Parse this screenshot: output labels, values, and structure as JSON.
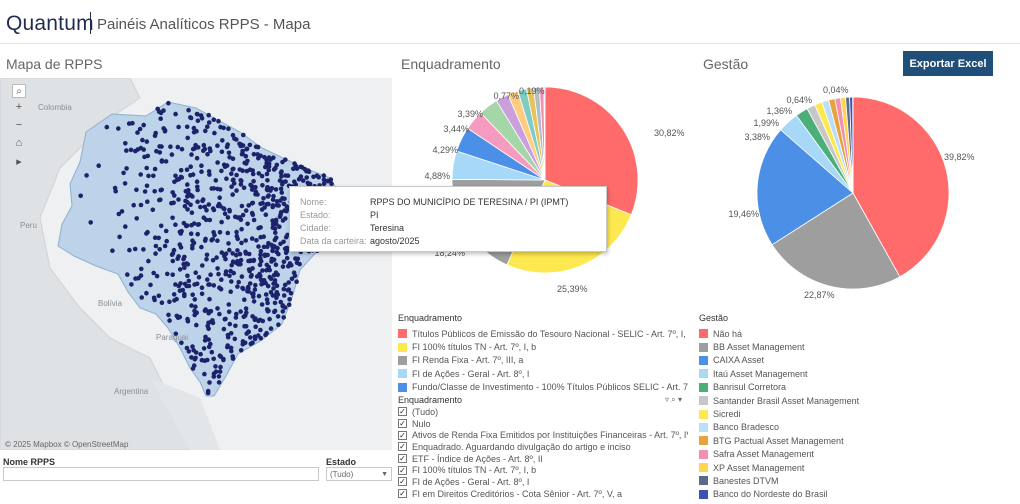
{
  "header": {
    "brand": "Quantum",
    "title": "Painéis Analíticos RPPS - Mapa"
  },
  "sections": {
    "map": "Mapa de RPPS",
    "enquadramento": "Enquadramento",
    "gestao": "Gestão"
  },
  "export_label": "Exportar Excel",
  "map": {
    "countries": [
      "Colombia",
      "Peru",
      "Bolívia",
      "Paraguai",
      "Argentina"
    ],
    "tools": {
      "search": "search-icon",
      "zoom_in": "+",
      "zoom_out": "−",
      "home": "home-icon",
      "play": "play-icon"
    },
    "credit": "© 2025 Mapbox  © OpenStreetMap",
    "marker_color": "#1c236b",
    "land_color": "#bcd3ea",
    "outside_color": "#d9dcdf"
  },
  "tooltip": {
    "rows": [
      {
        "label": "Nome:",
        "value": "RPPS DO MUNICÍPIO DE TERESINA / PI (IPMT)"
      },
      {
        "label": "Estado:",
        "value": "PI"
      },
      {
        "label": "Cidade:",
        "value": "Teresina"
      },
      {
        "label": "Data da carteira:",
        "value": "agosto/2025"
      }
    ]
  },
  "filters": {
    "nome_label": "Nome RPPS",
    "estado_label": "Estado",
    "estado_value": "(Tudo)"
  },
  "chart_data": [
    {
      "type": "pie",
      "title": "Enquadramento",
      "labels": [
        "30,82%",
        "25,39%",
        "18,24%",
        "4,88%",
        "4,29%",
        "3,44%",
        "3,39%",
        "0,77%",
        "0,19%"
      ],
      "slices": [
        {
          "value": 30.82,
          "color": "#ff6b6b"
        },
        {
          "value": 25.39,
          "color": "#fde94f"
        },
        {
          "value": 18.24,
          "color": "#9e9e9e"
        },
        {
          "value": 4.88,
          "color": "#a8d8f8"
        },
        {
          "value": 4.29,
          "color": "#4c8fe6"
        },
        {
          "value": 3.44,
          "color": "#f59bbf"
        },
        {
          "value": 3.39,
          "color": "#a5d6a7"
        },
        {
          "value": 2.2,
          "color": "#c9a0dc"
        },
        {
          "value": 1.8,
          "color": "#ffcc80"
        },
        {
          "value": 1.5,
          "color": "#80cbc4"
        },
        {
          "value": 1.2,
          "color": "#e6c35c"
        },
        {
          "value": 1.0,
          "color": "#b0bec5"
        },
        {
          "value": 0.77,
          "color": "#f48fb1"
        },
        {
          "value": 0.19,
          "color": "#90caf9"
        }
      ]
    },
    {
      "type": "pie",
      "title": "Gestão",
      "labels": [
        "39,82%",
        "22,87%",
        "19,46%",
        "3,38%",
        "1,99%",
        "1,36%",
        "0,64%",
        "0,04%"
      ],
      "slices": [
        {
          "value": 39.82,
          "color": "#ff6b6b"
        },
        {
          "value": 22.87,
          "color": "#9e9e9e"
        },
        {
          "value": 19.46,
          "color": "#4c8fe6"
        },
        {
          "value": 3.38,
          "color": "#a8d8f8"
        },
        {
          "value": 1.99,
          "color": "#4caf7a"
        },
        {
          "value": 1.36,
          "color": "#c7c7c7"
        },
        {
          "value": 1.2,
          "color": "#fde94f"
        },
        {
          "value": 1.1,
          "color": "#bbdefb"
        },
        {
          "value": 1.0,
          "color": "#e6a23c"
        },
        {
          "value": 0.9,
          "color": "#f48fb1"
        },
        {
          "value": 0.8,
          "color": "#ffd54f"
        },
        {
          "value": 0.64,
          "color": "#5c6b8a"
        },
        {
          "value": 0.5,
          "color": "#3f51b5"
        },
        {
          "value": 0.04,
          "color": "#90a4ae"
        }
      ]
    }
  ],
  "legend_enq": {
    "title": "Enquadramento",
    "items": [
      {
        "label": "Títulos Públicos de Emissão do Tesouro Nacional - SELIC - Art. 7º, I, a",
        "color": "#ff6b6b"
      },
      {
        "label": "FI 100% títulos TN - Art. 7º, I, b",
        "color": "#fde94f"
      },
      {
        "label": "FI Renda Fixa - Art. 7º, III, a",
        "color": "#9e9e9e"
      },
      {
        "label": "FI de Ações - Geral - Art. 8º, I",
        "color": "#a8d8f8"
      },
      {
        "label": "Fundo/Classe de Investimento - 100% Títulos Públicos SELIC - Art. 7º, ...",
        "color": "#4c8fe6"
      }
    ]
  },
  "checklist": {
    "title": "Enquadramento",
    "items": [
      "(Tudo)",
      "Nulo",
      "Ativos de Renda Fixa Emitidos por Instituições Financeiras - Art. 7º, IV",
      "Enquadrado. Aguardando divulgação do artigo e inciso",
      "ETF - Índice de Ações - Art. 8º, II",
      "FI 100% títulos TN - Art. 7º, I, b",
      "FI de Ações - Geral - Art. 8º, I",
      "FI em Direitos Creditórios - Cota Sênior - Art. 7º, V, a"
    ]
  },
  "legend_gestao": {
    "title": "Gestão",
    "items": [
      {
        "label": "Não há",
        "color": "#ff6b6b"
      },
      {
        "label": "BB Asset Management",
        "color": "#9e9e9e"
      },
      {
        "label": "CAIXA Asset",
        "color": "#4c8fe6"
      },
      {
        "label": "Itaú Asset Management",
        "color": "#a8d8f8"
      },
      {
        "label": "Banrisul Corretora",
        "color": "#4caf7a"
      },
      {
        "label": "Santander Brasil Asset Management",
        "color": "#c7c7c7"
      },
      {
        "label": "Sicredi",
        "color": "#fde94f"
      },
      {
        "label": "Banco Bradesco",
        "color": "#bbdefb"
      },
      {
        "label": "BTG Pactual Asset Management",
        "color": "#e6a23c"
      },
      {
        "label": "Safra Asset Management",
        "color": "#f48fb1"
      },
      {
        "label": "XP Asset Management",
        "color": "#ffd54f"
      },
      {
        "label": "Banestes DTVM",
        "color": "#5c6b8a"
      },
      {
        "label": "Banco do Nordeste do Brasil",
        "color": "#3f51b5"
      }
    ]
  }
}
